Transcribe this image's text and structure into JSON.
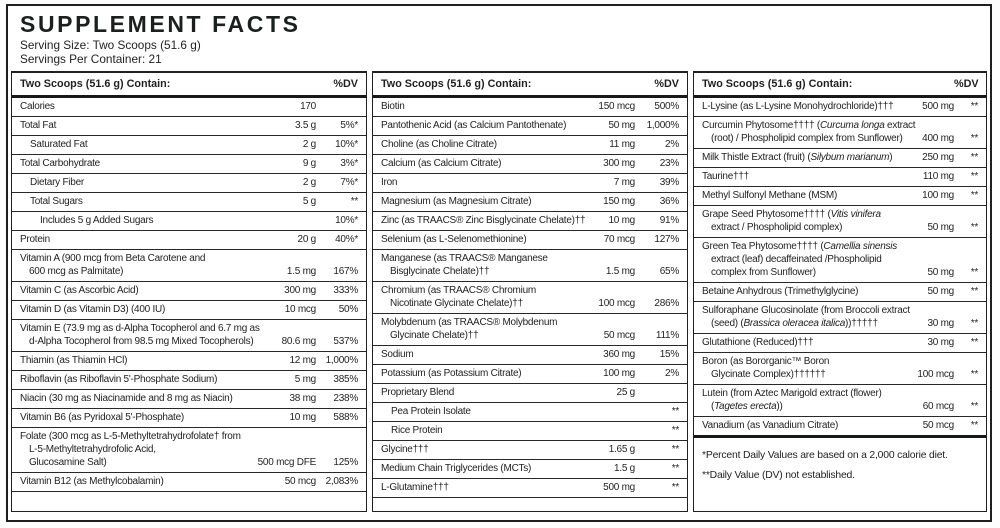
{
  "page": {
    "title": "SUPPLEMENT FACTS",
    "serving_size": "Serving Size: Two Scoops (51.6 g)",
    "servings_per_container": "Servings Per Container: 21"
  },
  "colors": {
    "text": "#211f1f",
    "border": "#1d1f1e",
    "background": "#ffffff"
  },
  "table": {
    "column_header": "Two Scoops (51.6 g) Contain:",
    "dv_header": "%DV",
    "footnotes": [
      "*Percent Daily Values are based on a 2,000 calorie diet.",
      "**Daily Value (DV) not established."
    ],
    "columns": [
      {
        "rows": [
          {
            "name": "Calories",
            "amount": "170",
            "dv": ""
          },
          {
            "name": "Total Fat",
            "amount": "3.5 g",
            "dv": "5%*"
          },
          {
            "name": "Saturated Fat",
            "amount": "2 g",
            "dv": "10%*",
            "indent": 1
          },
          {
            "name": "Total Carbohydrate",
            "amount": "9 g",
            "dv": "3%*"
          },
          {
            "name": "Dietary Fiber",
            "amount": "2 g",
            "dv": "7%*",
            "indent": 1
          },
          {
            "name": "Total Sugars",
            "amount": "5 g",
            "dv": "**",
            "indent": 1
          },
          {
            "name": "Includes 5 g Added Sugars",
            "amount": "",
            "dv": "10%*",
            "indent": 2
          },
          {
            "name": "Protein",
            "amount": "20 g",
            "dv": "40%*"
          },
          {
            "name": "Vitamin A (900 mcg from Beta Carotene and\n600 mcg as Palmitate)",
            "amount": "1.5 mg",
            "dv": "167%"
          },
          {
            "name": "Vitamin C (as Ascorbic Acid)",
            "amount": "300 mg",
            "dv": "333%"
          },
          {
            "name": "Vitamin D (as Vitamin D3) (400 IU)",
            "amount": "10 mcg",
            "dv": "50%"
          },
          {
            "name": "Vitamin E (73.9 mg as d-Alpha Tocopherol and 6.7 mg as\nd-Alpha Tocopherol from 98.5 mg Mixed Tocopherols)",
            "amount": "80.6 mg",
            "dv": "537%"
          },
          {
            "name": "Thiamin (as Thiamin HCl)",
            "amount": "12 mg",
            "dv": "1,000%"
          },
          {
            "name": "Riboflavin (as Riboflavin 5'-Phosphate Sodium)",
            "amount": "5 mg",
            "dv": "385%"
          },
          {
            "name": "Niacin (30 mg as Niacinamide and 8 mg as Niacin)",
            "amount": "38 mg",
            "dv": "238%"
          },
          {
            "name": "Vitamin B6 (as Pyridoxal 5'-Phosphate)",
            "amount": "10 mg",
            "dv": "588%"
          },
          {
            "name": "Folate (300 mcg as L-5-Methyltetrahydrofolate† from\nL-5-Methyltetrahydrofolic Acid,\nGlucosamine Salt)",
            "amount": "500 mcg DFE",
            "dv": "125%"
          },
          {
            "name": "Vitamin B12 (as Methylcobalamin)",
            "amount": "50 mcg",
            "dv": "2,083%"
          }
        ]
      },
      {
        "rows": [
          {
            "name": "Biotin",
            "amount": "150 mcg",
            "dv": "500%"
          },
          {
            "name": "Pantothenic Acid (as Calcium Pantothenate)",
            "amount": "50 mg",
            "dv": "1,000%"
          },
          {
            "name": "Choline (as Choline Citrate)",
            "amount": "11 mg",
            "dv": "2%"
          },
          {
            "name": "Calcium (as Calcium Citrate)",
            "amount": "300 mg",
            "dv": "23%"
          },
          {
            "name": "Iron",
            "amount": "7 mg",
            "dv": "39%"
          },
          {
            "name": "Magnesium (as Magnesium Citrate)",
            "amount": "150 mg",
            "dv": "36%"
          },
          {
            "name": "Zinc (as TRAACS® Zinc Bisglycinate Chelate)††",
            "amount": "10 mg",
            "dv": "91%"
          },
          {
            "name": "Selenium (as L-Selenomethionine)",
            "amount": "70 mcg",
            "dv": "127%"
          },
          {
            "name": "Manganese (as TRAACS® Manganese\nBisglycinate Chelate)††",
            "amount": "1.5 mg",
            "dv": "65%"
          },
          {
            "name": "Chromium (as TRAACS® Chromium\nNicotinate Glycinate Chelate)††",
            "amount": "100 mcg",
            "dv": "286%"
          },
          {
            "name": "Molybdenum (as TRAACS® Molybdenum\nGlycinate Chelate)††",
            "amount": "50 mcg",
            "dv": "111%"
          },
          {
            "name": "Sodium",
            "amount": "360 mg",
            "dv": "15%"
          },
          {
            "name": "Potassium (as Potassium Citrate)",
            "amount": "100 mg",
            "dv": "2%"
          },
          {
            "name": "Proprietary Blend",
            "amount": "25 g",
            "dv": ""
          },
          {
            "name": "Pea Protein Isolate",
            "amount": "",
            "dv": "**",
            "indent": 1
          },
          {
            "name": "Rice Protein",
            "amount": "",
            "dv": "**",
            "indent": 1
          },
          {
            "name": "Glycine†††",
            "amount": "1.65 g",
            "dv": "**"
          },
          {
            "name": "Medium Chain Triglycerides (MCTs)",
            "amount": "1.5 g",
            "dv": "**"
          },
          {
            "name": "L-Glutamine†††",
            "amount": "500 mg",
            "dv": "**"
          }
        ]
      },
      {
        "rows": [
          {
            "name": "L-Lysine (as L-Lysine Monohydrochloride)†††",
            "amount": "500 mg",
            "dv": "**"
          },
          {
            "name": "Curcumin Phytosome†††† (_Curcuma longa_ extract\n(root) / Phospholipid complex from Sunflower)",
            "amount": "400 mg",
            "dv": "**"
          },
          {
            "name": "Milk Thistle Extract (fruit) (_Silybum marianum_)",
            "amount": "250 mg",
            "dv": "**"
          },
          {
            "name": "Taurine†††",
            "amount": "110 mg",
            "dv": "**"
          },
          {
            "name": "Methyl Sulfonyl Methane (MSM)",
            "amount": "100 mg",
            "dv": "**"
          },
          {
            "name": "Grape Seed Phytosome†††† (_Vitis vinifera_\nextract / Phospholipid complex)",
            "amount": "50 mg",
            "dv": "**"
          },
          {
            "name": "Green Tea Phytosome†††† (_Camellia sinensis_\nextract (leaf) decaffeinated /Phospholipid\ncomplex from Sunflower)",
            "amount": "50 mg",
            "dv": "**"
          },
          {
            "name": "Betaine Anhydrous (Trimethylglycine)",
            "amount": "50 mg",
            "dv": "**"
          },
          {
            "name": "Sulforaphane Glucosinolate (from Broccoli extract\n(seed) (_Brassica oleracea italica_))†††††",
            "amount": "30 mg",
            "dv": "**"
          },
          {
            "name": "Glutathione (Reduced)†††",
            "amount": "30 mg",
            "dv": "**"
          },
          {
            "name": "Boron (as Bororganic™ Boron\nGlycinate Complex)††††††",
            "amount": "100 mcg",
            "dv": "**"
          },
          {
            "name": "Lutein (from Aztec Marigold extract (flower)\n(_Tagetes erecta_))",
            "amount": "60 mcg",
            "dv": "**"
          },
          {
            "name": "Vanadium (as Vanadium Citrate)",
            "amount": "50 mcg",
            "dv": "**"
          }
        ]
      }
    ]
  }
}
